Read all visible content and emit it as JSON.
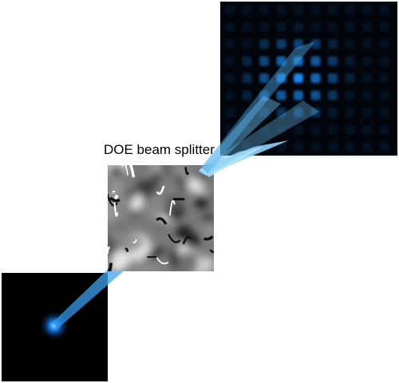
{
  "doe_label": "DOE beam splitter",
  "colors": {
    "beam": "#2a8fe6",
    "beam_light": "#7cc8f2",
    "spot": "#1e90ff",
    "dark": "#000000"
  },
  "icons": [
    "input-beam-panel",
    "doe-phase-mask",
    "spot-array-panel"
  ]
}
